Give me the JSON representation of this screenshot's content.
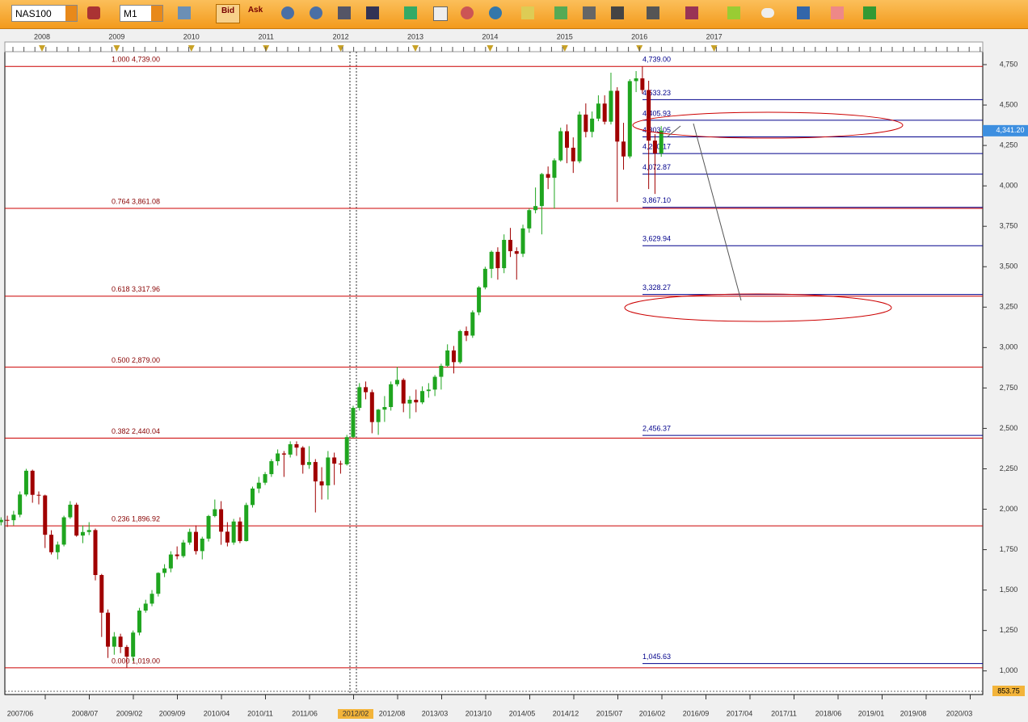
{
  "toolbar": {
    "symbol": "NAS100",
    "timeframe": "M1",
    "bid": "Bid",
    "ask": "Ask"
  },
  "chart_data": {
    "type": "candlestick",
    "years": [
      "2008",
      "2009",
      "2010",
      "2011",
      "2012",
      "2013",
      "2014",
      "2015",
      "2016",
      "2017"
    ],
    "dates": [
      "2007/06",
      "2008/07",
      "2009/02",
      "2009/09",
      "2010/04",
      "2010/11",
      "2011/06",
      "2012/02",
      "2012/08",
      "2013/03",
      "2013/10",
      "2014/05",
      "2014/12",
      "2015/07",
      "2016/02",
      "2016/09",
      "2017/04",
      "2017/11",
      "2018/06",
      "2019/01",
      "2019/08",
      "2020/03"
    ],
    "ylim": [
      853.75,
      4830
    ],
    "yticks": [
      {
        "value": 1000,
        "label": "1,000"
      },
      {
        "value": 1250,
        "label": "1,250"
      },
      {
        "value": 1500,
        "label": "1,500"
      },
      {
        "value": 1750,
        "label": "1,750"
      },
      {
        "value": 2000,
        "label": "2,000"
      },
      {
        "value": 2250,
        "label": "2,250"
      },
      {
        "value": 2500,
        "label": "2,500"
      },
      {
        "value": 2750,
        "label": "2,750"
      },
      {
        "value": 3000,
        "label": "3,000"
      },
      {
        "value": 3250,
        "label": "3,250"
      },
      {
        "value": 3500,
        "label": "3,500"
      },
      {
        "value": 3750,
        "label": "3,750"
      },
      {
        "value": 4000,
        "label": "4,000"
      },
      {
        "value": 4250,
        "label": "4,250"
      },
      {
        "value": 4500,
        "label": "4,500"
      },
      {
        "value": 4750,
        "label": "4,750"
      }
    ],
    "current_price": {
      "value": 4341.2,
      "label": "4,341.20"
    },
    "bottom_price": {
      "value": 853.75,
      "label": "853.75"
    },
    "fib_levels": [
      {
        "value": 4739,
        "label": "1.000 4,739.00"
      },
      {
        "value": 3861.08,
        "label": "0.764 3,861.08"
      },
      {
        "value": 3317.96,
        "label": "0.618 3,317.96"
      },
      {
        "value": 2879,
        "label": "0.500 2,879.00"
      },
      {
        "value": 2440.04,
        "label": "0.382 2,440.04"
      },
      {
        "value": 1896.92,
        "label": "0.236 1,896.92"
      },
      {
        "value": 1019,
        "label": "0.000 1,019.00"
      }
    ],
    "levels": [
      {
        "value": 4739,
        "label": "4,739.00"
      },
      {
        "value": 4533.23,
        "label": "4,533.23"
      },
      {
        "value": 4405.93,
        "label": "4,405.93"
      },
      {
        "value": 4303.05,
        "label": "4,303.05"
      },
      {
        "value": 4200.17,
        "label": "4,200.17"
      },
      {
        "value": 4072.87,
        "label": "4,072.87"
      },
      {
        "value": 3867.1,
        "label": "3,867.10"
      },
      {
        "value": 3629.94,
        "label": "3,629.94"
      },
      {
        "value": 3328.27,
        "label": "3,328.27"
      },
      {
        "value": 2456.37,
        "label": "2,456.37"
      },
      {
        "value": 1045.63,
        "label": "1,045.63"
      }
    ],
    "candles": [
      [
        1920,
        1950,
        1900,
        1934
      ],
      [
        1934,
        1960,
        1890,
        1932
      ],
      [
        1932,
        1990,
        1900,
        1966
      ],
      [
        1966,
        2110,
        1950,
        2091
      ],
      [
        2091,
        2250,
        2080,
        2238
      ],
      [
        2238,
        2245,
        2040,
        2089
      ],
      [
        2089,
        2110,
        2030,
        2085
      ],
      [
        2085,
        2090,
        1760,
        1842
      ],
      [
        1842,
        1870,
        1720,
        1734
      ],
      [
        1734,
        1800,
        1690,
        1781
      ],
      [
        1781,
        1960,
        1770,
        1950
      ],
      [
        1950,
        2050,
        1940,
        2028
      ],
      [
        2028,
        2040,
        1830,
        1837
      ],
      [
        1837,
        1900,
        1790,
        1859
      ],
      [
        1859,
        1920,
        1840,
        1871
      ],
      [
        1871,
        1880,
        1560,
        1593
      ],
      [
        1593,
        1600,
        1210,
        1360
      ],
      [
        1360,
        1380,
        1080,
        1150
      ],
      [
        1150,
        1240,
        1100,
        1212
      ],
      [
        1212,
        1230,
        1110,
        1148
      ],
      [
        1148,
        1160,
        1019,
        1088
      ],
      [
        1088,
        1250,
        1060,
        1237
      ],
      [
        1237,
        1390,
        1220,
        1373
      ],
      [
        1373,
        1440,
        1360,
        1416
      ],
      [
        1416,
        1500,
        1400,
        1477
      ],
      [
        1477,
        1610,
        1460,
        1606
      ],
      [
        1606,
        1660,
        1580,
        1634
      ],
      [
        1634,
        1740,
        1610,
        1720
      ],
      [
        1720,
        1770,
        1690,
        1710
      ],
      [
        1710,
        1810,
        1700,
        1794
      ],
      [
        1794,
        1880,
        1780,
        1860
      ],
      [
        1860,
        1900,
        1720,
        1741
      ],
      [
        1741,
        1830,
        1690,
        1818
      ],
      [
        1818,
        1965,
        1800,
        1958
      ],
      [
        1958,
        2060,
        1950,
        2000
      ],
      [
        2000,
        2050,
        1780,
        1861
      ],
      [
        1861,
        1920,
        1770,
        1794
      ],
      [
        1794,
        1940,
        1780,
        1924
      ],
      [
        1924,
        1950,
        1790,
        1803
      ],
      [
        1803,
        2040,
        1800,
        2026
      ],
      [
        2026,
        2140,
        2010,
        2128
      ],
      [
        2128,
        2200,
        2100,
        2164
      ],
      [
        2164,
        2230,
        2150,
        2217
      ],
      [
        2217,
        2310,
        2200,
        2297
      ],
      [
        2297,
        2370,
        2270,
        2345
      ],
      [
        2345,
        2360,
        2200,
        2338
      ],
      [
        2338,
        2420,
        2320,
        2402
      ],
      [
        2402,
        2420,
        2330,
        2381
      ],
      [
        2381,
        2390,
        2220,
        2274
      ],
      [
        2274,
        2390,
        2250,
        2292
      ],
      [
        2292,
        2310,
        1980,
        2172
      ],
      [
        2172,
        2260,
        2060,
        2147
      ],
      [
        2147,
        2360,
        2060,
        2320
      ],
      [
        2320,
        2350,
        2150,
        2282
      ],
      [
        2282,
        2300,
        2220,
        2278
      ],
      [
        2278,
        2460,
        2270,
        2446
      ],
      [
        2446,
        2640,
        2440,
        2627
      ],
      [
        2627,
        2780,
        2610,
        2755
      ],
      [
        2755,
        2790,
        2680,
        2724
      ],
      [
        2724,
        2740,
        2470,
        2539
      ],
      [
        2539,
        2620,
        2460,
        2616
      ],
      [
        2616,
        2700,
        2540,
        2632
      ],
      [
        2632,
        2790,
        2610,
        2773
      ],
      [
        2773,
        2880,
        2760,
        2800
      ],
      [
        2800,
        2810,
        2600,
        2654
      ],
      [
        2654,
        2700,
        2560,
        2677
      ],
      [
        2677,
        2740,
        2600,
        2661
      ],
      [
        2661,
        2760,
        2650,
        2731
      ],
      [
        2731,
        2780,
        2690,
        2740
      ],
      [
        2740,
        2830,
        2700,
        2819
      ],
      [
        2819,
        2900,
        2740,
        2887
      ],
      [
        2887,
        3020,
        2880,
        2982
      ],
      [
        2982,
        3010,
        2840,
        2910
      ],
      [
        2910,
        3110,
        2900,
        3102
      ],
      [
        3102,
        3130,
        3040,
        3074
      ],
      [
        3074,
        3230,
        3060,
        3218
      ],
      [
        3218,
        3380,
        3200,
        3372
      ],
      [
        3372,
        3500,
        3360,
        3487
      ],
      [
        3487,
        3600,
        3430,
        3592
      ],
      [
        3592,
        3620,
        3420,
        3491
      ],
      [
        3491,
        3700,
        3460,
        3666
      ],
      [
        3666,
        3740,
        3560,
        3596
      ],
      [
        3596,
        3620,
        3420,
        3580
      ],
      [
        3580,
        3760,
        3560,
        3737
      ],
      [
        3737,
        3860,
        3710,
        3850
      ],
      [
        3850,
        3990,
        3830,
        3875
      ],
      [
        3875,
        4080,
        3700,
        4073
      ],
      [
        4073,
        4120,
        3980,
        4050
      ],
      [
        4050,
        4170,
        3860,
        4158
      ],
      [
        4158,
        4360,
        4150,
        4338
      ],
      [
        4338,
        4380,
        4140,
        4236
      ],
      [
        4236,
        4300,
        4080,
        4152
      ],
      [
        4152,
        4460,
        4140,
        4441
      ],
      [
        4441,
        4510,
        4300,
        4334
      ],
      [
        4334,
        4460,
        4300,
        4416
      ],
      [
        4416,
        4560,
        4400,
        4509
      ],
      [
        4509,
        4560,
        4380,
        4397
      ],
      [
        4397,
        4700,
        4380,
        4588
      ],
      [
        4588,
        4610,
        3900,
        4274
      ],
      [
        4274,
        4390,
        4100,
        4182
      ],
      [
        4182,
        4660,
        4170,
        4648
      ],
      [
        4648,
        4710,
        4580,
        4665
      ],
      [
        4665,
        4739,
        4570,
        4593
      ],
      [
        4593,
        4650,
        3980,
        4280
      ],
      [
        4280,
        4320,
        3950,
        4201
      ],
      [
        4201,
        4370,
        4180,
        4341
      ]
    ]
  }
}
